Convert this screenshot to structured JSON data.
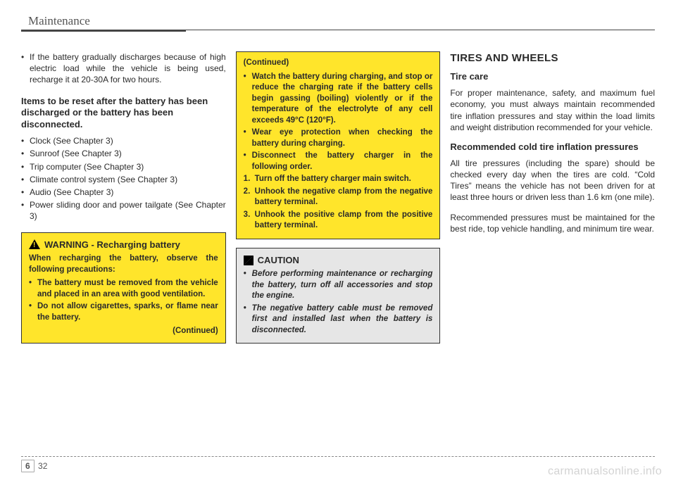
{
  "header": {
    "title": "Maintenance"
  },
  "col1": {
    "intro_bullets": [
      "If the battery gradually discharges because of high electric load while the vehicle is being used, recharge it at 20-30A for two hours."
    ],
    "reset_heading": "Items to be reset after the battery has been discharged or the battery has been disconnected.",
    "reset_items": [
      "Clock (See Chapter 3)",
      "Sunroof (See Chapter 3)",
      "Trip computer (See Chapter 3)",
      "Climate control system (See Chapter 3)",
      "Audio (See Chapter 3)",
      "Power sliding door and power tailgate (See Chapter 3)"
    ],
    "warning": {
      "title": "WARNING - Recharging battery",
      "intro": "When recharging the battery, observe the following precautions:",
      "items": [
        "The battery must be removed from the vehicle and placed in an area with good ventilation.",
        "Do not allow cigarettes, sparks, or flame near the battery."
      ],
      "continued": "(Continued)"
    }
  },
  "col2": {
    "continued": {
      "label": "(Continued)",
      "items": [
        "Watch the battery during charging, and stop or reduce the charging rate if the battery cells begin gassing (boiling) violently or if the temperature of the electrolyte of any cell exceeds 49°C (120°F).",
        "Wear eye protection when checking the battery during charging.",
        "Disconnect the battery charger in the following order."
      ],
      "steps": [
        "Turn off the battery charger main switch.",
        "Unhook the negative clamp from the negative battery terminal.",
        "Unhook the positive clamp from the positive battery terminal."
      ]
    },
    "caution": {
      "title": "CAUTION",
      "items": [
        "Before performing maintenance or recharging the battery, turn off all accessories and stop the engine.",
        "The negative battery cable must be removed first and installed last when the battery is disconnected."
      ]
    }
  },
  "col3": {
    "section_title": "TIRES AND WHEELS",
    "tire_care_heading": "Tire care",
    "tire_care_body": "For proper maintenance, safety, and maximum fuel economy, you must always maintain recommended tire inflation pressures and stay within the load limits and weight distribution recommended for your vehicle.",
    "cold_heading": "Recommended cold tire inflation pressures",
    "cold_body1": "All tire pressures (including the spare) should be checked every day when the tires are cold. “Cold Tires” means the vehicle has not been driven for at least three hours or driven less than 1.6 km (one mile).",
    "cold_body2": "Recommended pressures must be maintained for the best ride, top vehicle handling, and minimum tire wear."
  },
  "footer": {
    "section": "6",
    "page": "32"
  },
  "watermark": "carmanualsonline.info",
  "colors": {
    "warning_bg": "#ffe52b",
    "caution_bg": "#e6e6e6",
    "border": "#333333",
    "text": "#2a2a2a"
  }
}
